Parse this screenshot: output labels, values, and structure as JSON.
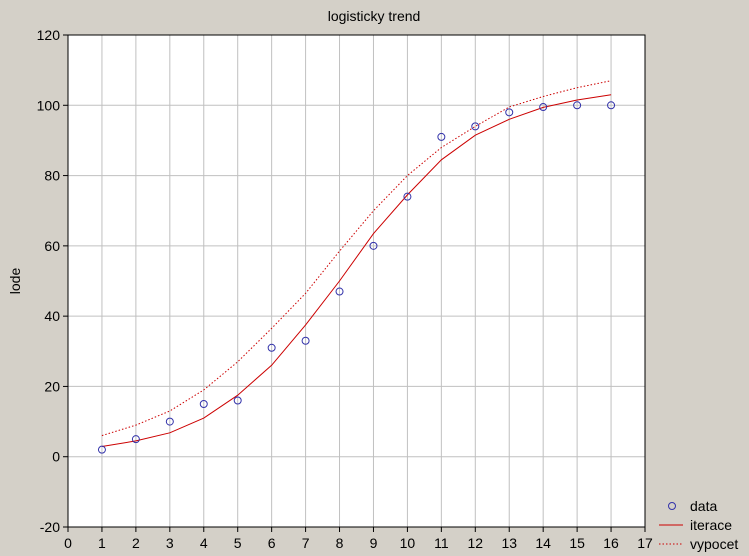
{
  "chart_data": {
    "type": "scatter",
    "title": "logisticky trend",
    "xlabel": "",
    "ylabel": "lode",
    "xlim": [
      0,
      17
    ],
    "ylim": [
      -20,
      120
    ],
    "xticks": [
      0,
      1,
      2,
      3,
      4,
      5,
      6,
      7,
      8,
      9,
      10,
      11,
      12,
      13,
      14,
      15,
      16,
      17
    ],
    "yticks": [
      -20,
      0,
      20,
      40,
      60,
      80,
      100,
      120
    ],
    "grid": true,
    "legend_position": "bottom-right",
    "series": [
      {
        "name": "data",
        "style": "markers",
        "color": "#3333aa",
        "x": [
          1,
          2,
          3,
          4,
          5,
          6,
          7,
          8,
          9,
          10,
          11,
          12,
          13,
          14,
          15,
          16
        ],
        "y": [
          2,
          5,
          10,
          15,
          16,
          31,
          33,
          47,
          60,
          74,
          91,
          94,
          98,
          99.5,
          100,
          100
        ]
      },
      {
        "name": "iterace",
        "style": "solid",
        "color": "#cc0000",
        "x": [
          1,
          2,
          3,
          4,
          5,
          6,
          7,
          8,
          9,
          10,
          11,
          12,
          13,
          14,
          15,
          16
        ],
        "y": [
          2.9,
          4.5,
          6.8,
          11,
          17.5,
          26,
          37.5,
          50,
          63.5,
          74.5,
          84.5,
          91.5,
          96,
          99.4,
          101.5,
          103
        ]
      },
      {
        "name": "vypocet",
        "style": "dotted",
        "color": "#cc0000",
        "x": [
          1,
          2,
          3,
          4,
          5,
          6,
          7,
          8,
          9,
          10,
          11,
          12,
          13,
          14,
          15,
          16
        ],
        "y": [
          6,
          9,
          13,
          19,
          27,
          36.5,
          46.5,
          58.5,
          70,
          80,
          88,
          94,
          99.5,
          102.5,
          105,
          107
        ]
      }
    ]
  }
}
